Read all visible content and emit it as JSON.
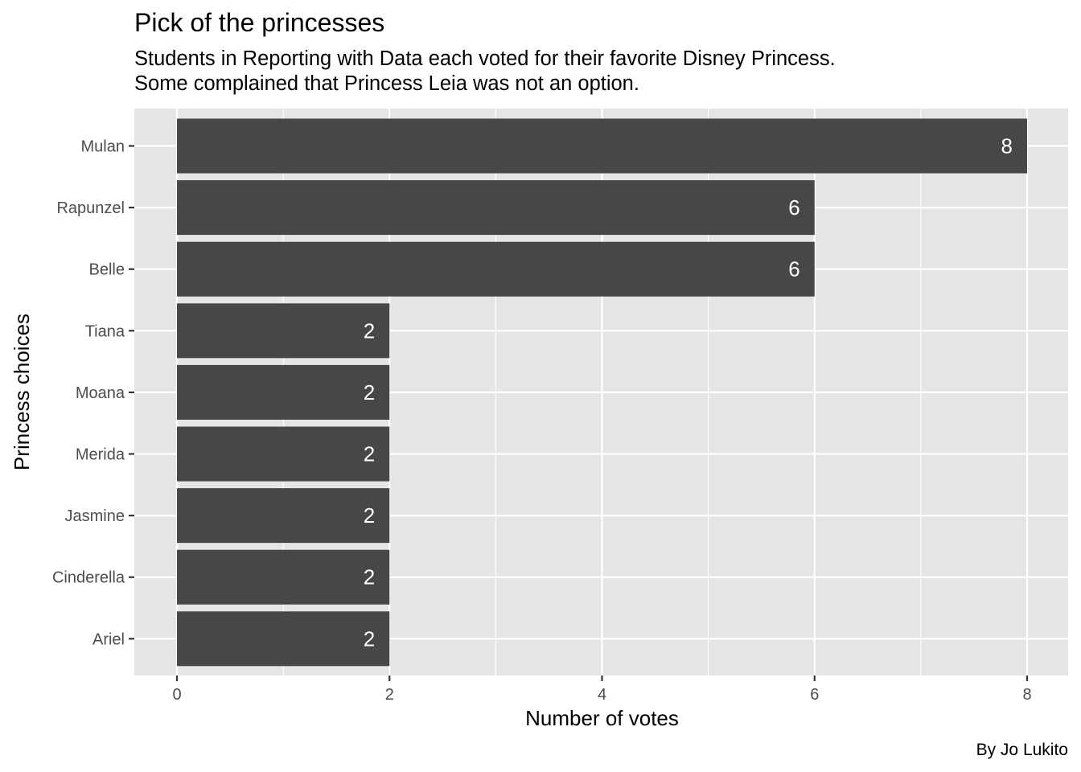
{
  "chart_data": {
    "type": "bar",
    "orientation": "horizontal",
    "title": "Pick of the princesses",
    "subtitle": [
      "Students in Reporting with Data each voted for their favorite Disney Princess.",
      "Some complained that Princess Leia was not an option."
    ],
    "caption": "By Jo Lukito",
    "xlabel": "Number of votes",
    "ylabel": "Princess choices",
    "categories": [
      "Mulan",
      "Rapunzel",
      "Belle",
      "Tiana",
      "Moana",
      "Merida",
      "Jasmine",
      "Cinderella",
      "Ariel"
    ],
    "values": [
      8,
      6,
      6,
      2,
      2,
      2,
      2,
      2,
      2
    ],
    "data_labels": [
      "8",
      "6",
      "6",
      "2",
      "2",
      "2",
      "2",
      "2",
      "2"
    ],
    "xlim": [
      0,
      8
    ],
    "x_ticks": [
      "0",
      "2",
      "4",
      "6",
      "8"
    ],
    "grid": true,
    "legend": "none",
    "colors": {
      "panel_background": "#e5e5e5",
      "grid": "#ffffff",
      "bar_fill": "#474747",
      "bar_label": "#ffffff",
      "tick_text": "#4d4d4d"
    }
  }
}
